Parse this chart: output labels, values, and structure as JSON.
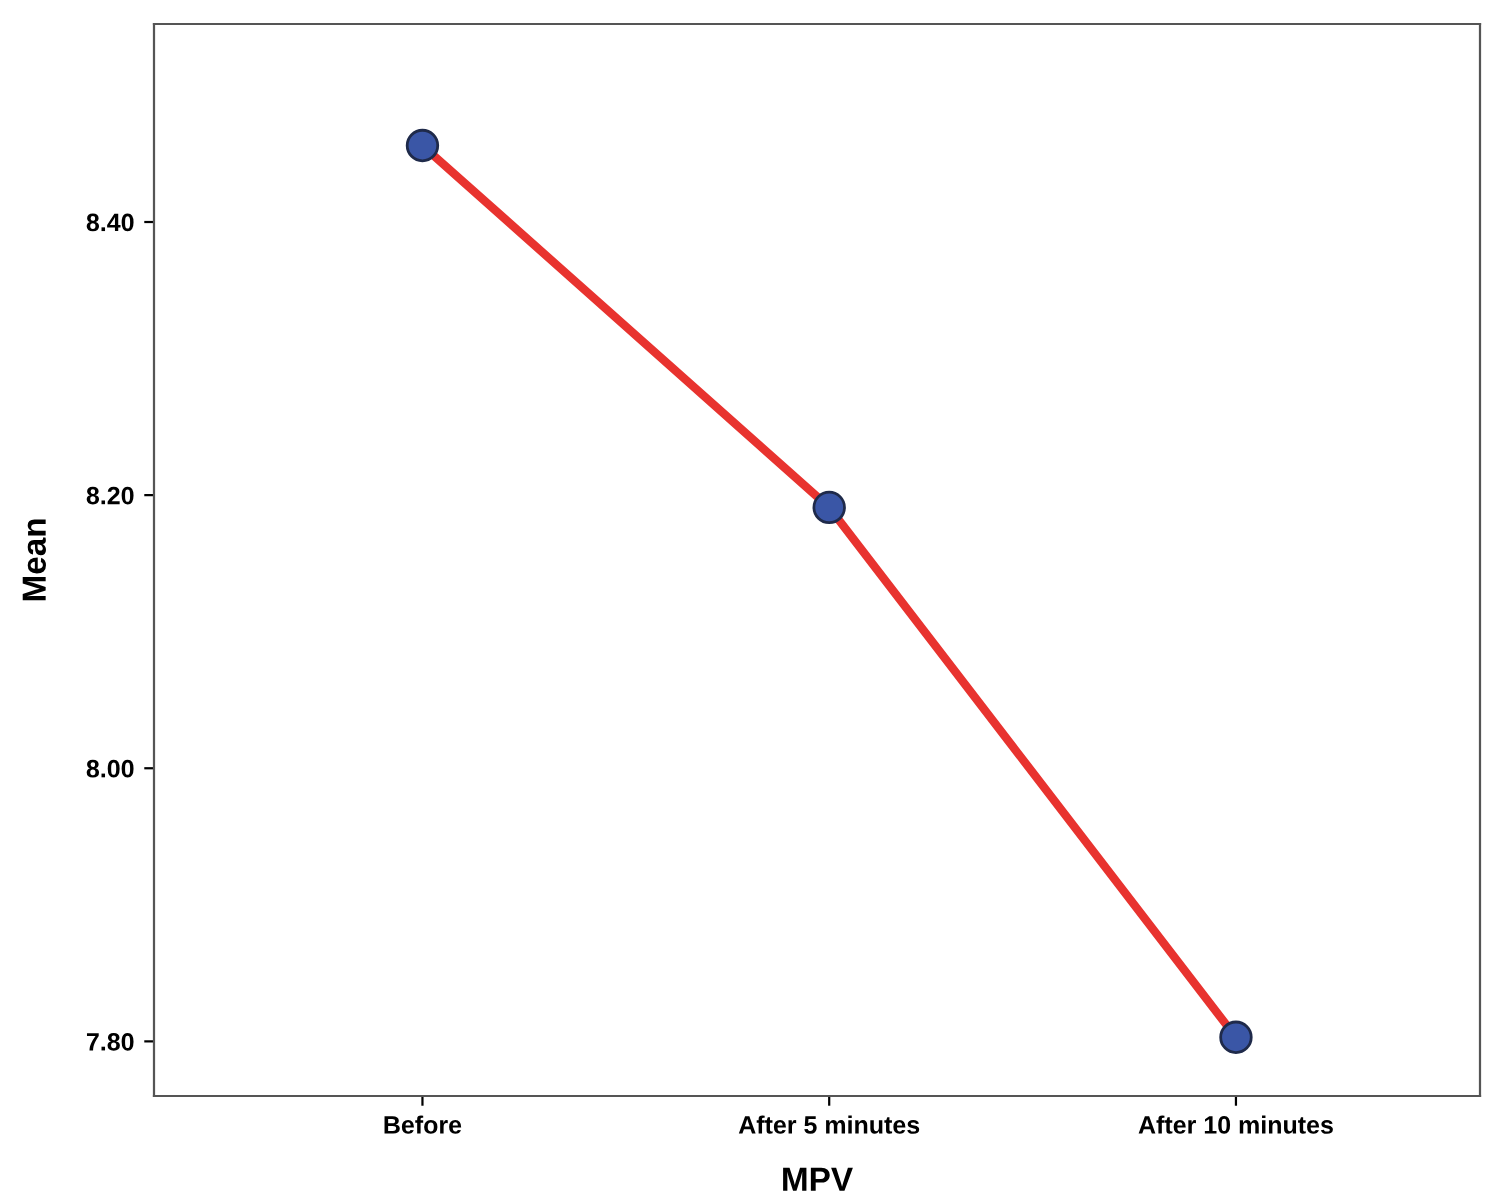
{
  "chart_data": {
    "type": "line",
    "xlabel": "MPV",
    "ylabel": "Mean",
    "categories": [
      "Before",
      "After 5 minutes",
      "After 10 minutes"
    ],
    "series": [
      {
        "color": "#e8332f",
        "values": [
          8.456,
          8.191,
          7.803
        ]
      }
    ],
    "ylim": [
      7.76,
      8.545
    ],
    "yticks": [
      {
        "value": 7.8,
        "label": "7.80"
      },
      {
        "value": 8.0,
        "label": "8.00"
      },
      {
        "value": 8.2,
        "label": "8.20"
      },
      {
        "value": 8.4,
        "label": "8.40"
      }
    ],
    "marker": "circle",
    "line_style": "solid",
    "grid": false,
    "legend": false
  }
}
